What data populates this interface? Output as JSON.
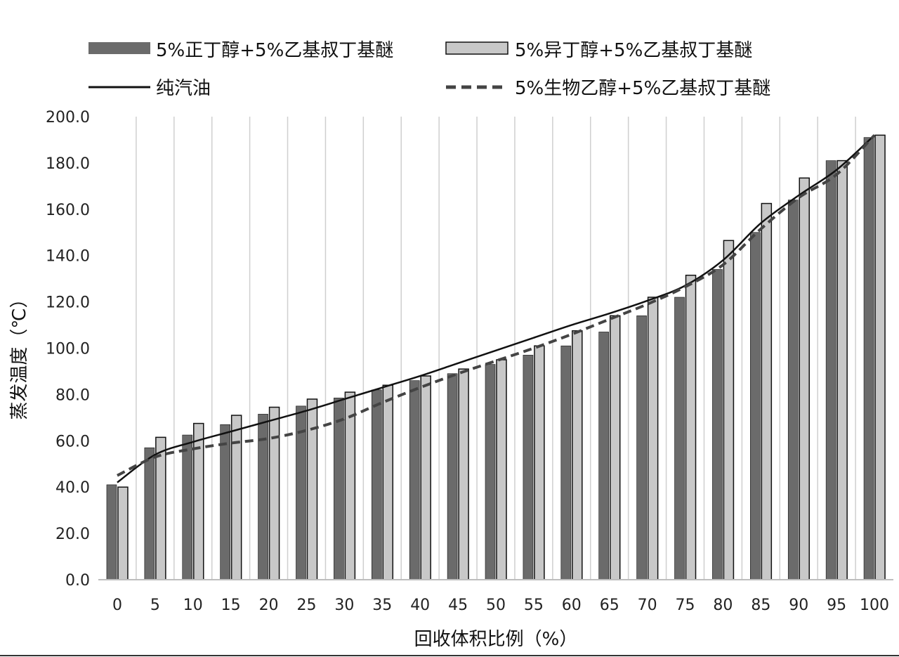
{
  "chart_data": {
    "type": "bar",
    "xlabel": "回收体积比例（%）",
    "ylabel": "蒸发温度（℃）",
    "ylim": [
      0,
      200
    ],
    "yticks": [
      "0.0",
      "20.0",
      "40.0",
      "60.0",
      "80.0",
      "100.0",
      "120.0",
      "140.0",
      "160.0",
      "180.0",
      "200.0"
    ],
    "grid": "vertical",
    "legend": "top",
    "categories": [
      "0",
      "5",
      "10",
      "15",
      "20",
      "25",
      "30",
      "35",
      "40",
      "45",
      "50",
      "55",
      "60",
      "65",
      "70",
      "75",
      "80",
      "85",
      "90",
      "95",
      "100"
    ],
    "bar_series": [
      {
        "name": "5%正丁醇+5%乙基叔丁基醚",
        "color": "#6b6b6b",
        "values": [
          41,
          57,
          62.5,
          67,
          71.5,
          75,
          78.5,
          82,
          86,
          89,
          93,
          97,
          101,
          107,
          114,
          122,
          134,
          150,
          164,
          181,
          191
        ]
      },
      {
        "name": "5%异丁醇+5%乙基叔丁基醚",
        "color": "#c8c8c8",
        "values": [
          40,
          61.5,
          67.5,
          71,
          74.5,
          78,
          81,
          84,
          88,
          91,
          95,
          101,
          107.5,
          114,
          122,
          131.5,
          146.5,
          162.5,
          173.5,
          181,
          192
        ]
      }
    ],
    "line_series": [
      {
        "name": "纯汽油",
        "style": "solid",
        "color": "#111111",
        "values": [
          42,
          54,
          59.5,
          64,
          68.5,
          73,
          78,
          83,
          88,
          93.5,
          99,
          104.5,
          110,
          115,
          120.5,
          127,
          138,
          154,
          166,
          177,
          192
        ]
      },
      {
        "name": "5%生物乙醇+5%乙基叔丁基醚",
        "style": "dashed",
        "color": "#444444",
        "values": [
          45,
          53,
          56.5,
          59,
          61,
          64.5,
          69.5,
          76.5,
          83,
          89,
          94.5,
          100,
          106,
          112.5,
          119,
          126.5,
          136,
          151.5,
          165,
          175,
          192
        ]
      }
    ]
  }
}
